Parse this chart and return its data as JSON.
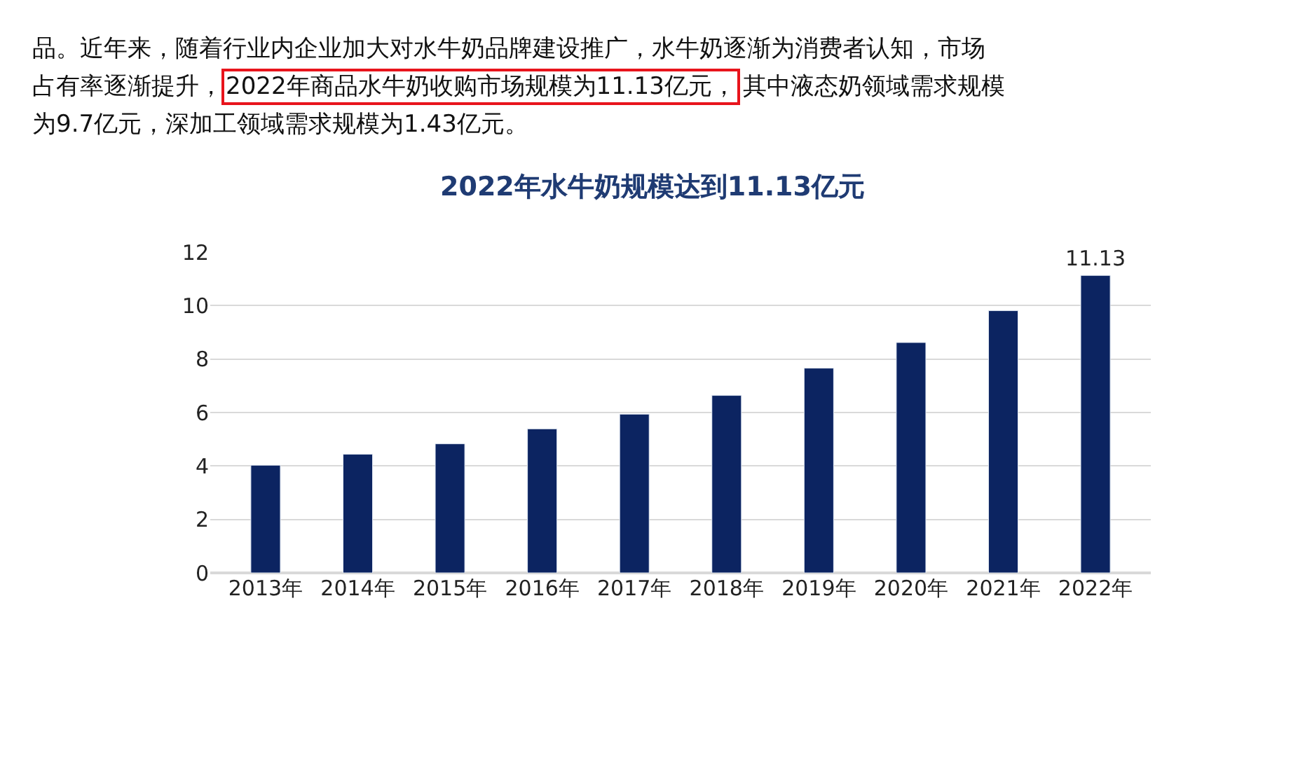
{
  "chart_data": {
    "type": "bar",
    "title": "2022年水牛奶规模达到11.13亿元",
    "categories": [
      "2013年",
      "2014年",
      "2015年",
      "2016年",
      "2017年",
      "2018年",
      "2019年",
      "2020年",
      "2021年",
      "2022年"
    ],
    "values": [
      4.03,
      4.44,
      4.83,
      5.39,
      5.94,
      6.64,
      7.66,
      8.62,
      9.81,
      11.13
    ],
    "value_labels": [
      null,
      null,
      null,
      null,
      null,
      null,
      null,
      null,
      null,
      "11.13"
    ],
    "color": "#0c2461",
    "ylim": [
      0,
      12
    ],
    "yticks": [
      0,
      2,
      4,
      6,
      8,
      10,
      12
    ],
    "grid": "y",
    "legend": false,
    "annotations": [
      "品。近年来，随着行业内企业加大对水牛奶品牌建设推广，水牛奶逐渐为消费者认知，市场",
      "占有率逐渐提升，",
      "2022年商品水牛奶收购市场规模为11.13亿元，",
      "其中液态奶领域需求规模",
      "为9.7亿元，深加工领域需求规模为1.43亿元。"
    ]
  }
}
